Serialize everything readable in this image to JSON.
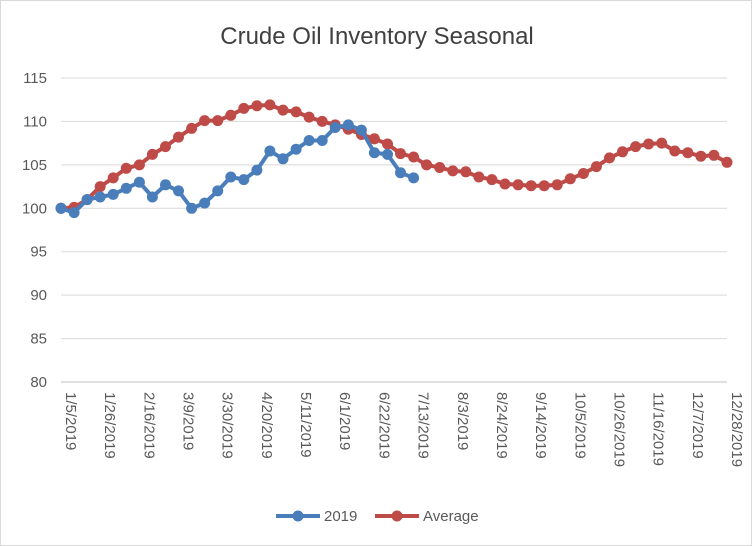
{
  "colors": {
    "s2019": "#4a7ebb",
    "average": "#be4b48"
  },
  "chart_data": {
    "type": "line",
    "title": "Crude Oil Inventory Seasonal",
    "xlabel": "",
    "ylabel": "",
    "ylim": [
      80,
      115
    ],
    "y_ticks": [
      80,
      85,
      90,
      95,
      100,
      105,
      110,
      115
    ],
    "x_count": 52,
    "x_tick_labels": [
      {
        "index": 0,
        "label": "1/5/2019"
      },
      {
        "index": 3,
        "label": "1/26/2019"
      },
      {
        "index": 6,
        "label": "2/16/2019"
      },
      {
        "index": 9,
        "label": "3/9/2019"
      },
      {
        "index": 12,
        "label": "3/30/2019"
      },
      {
        "index": 15,
        "label": "4/20/2019"
      },
      {
        "index": 18,
        "label": "5/11/2019"
      },
      {
        "index": 21,
        "label": "6/1/2019"
      },
      {
        "index": 24,
        "label": "6/22/2019"
      },
      {
        "index": 27,
        "label": "7/13/2019"
      },
      {
        "index": 30,
        "label": "8/3/2019"
      },
      {
        "index": 33,
        "label": "8/24/2019"
      },
      {
        "index": 36,
        "label": "9/14/2019"
      },
      {
        "index": 39,
        "label": "10/5/2019"
      },
      {
        "index": 42,
        "label": "10/26/2019"
      },
      {
        "index": 45,
        "label": "11/16/2019"
      },
      {
        "index": 48,
        "label": "12/7/2019"
      },
      {
        "index": 51,
        "label": "12/28/2019"
      }
    ],
    "grid": true,
    "legend_position": "bottom",
    "series": [
      {
        "name": "2019",
        "color": "#4a7ebb",
        "values": [
          100.0,
          99.5,
          101.0,
          101.3,
          101.6,
          102.3,
          103.0,
          101.3,
          102.7,
          102.0,
          100.0,
          100.6,
          102.0,
          103.6,
          103.3,
          104.4,
          106.6,
          105.7,
          106.8,
          107.8,
          107.8,
          109.3,
          109.6,
          109.0,
          106.4,
          106.2,
          104.1,
          103.5
        ]
      },
      {
        "name": "Average",
        "color": "#be4b48",
        "values": [
          100.0,
          100.1,
          101.0,
          102.5,
          103.5,
          104.6,
          105.0,
          106.2,
          107.1,
          108.2,
          109.2,
          110.1,
          110.1,
          110.7,
          111.5,
          111.8,
          111.9,
          111.3,
          111.1,
          110.5,
          110.0,
          109.6,
          109.1,
          108.5,
          108.0,
          107.4,
          106.3,
          105.9,
          105.0,
          104.7,
          104.3,
          104.2,
          103.6,
          103.3,
          102.8,
          102.7,
          102.6,
          102.6,
          102.7,
          103.4,
          104.0,
          104.8,
          105.8,
          106.5,
          107.1,
          107.4,
          107.5,
          106.6,
          106.4,
          106.0,
          106.1,
          105.3
        ]
      }
    ]
  }
}
